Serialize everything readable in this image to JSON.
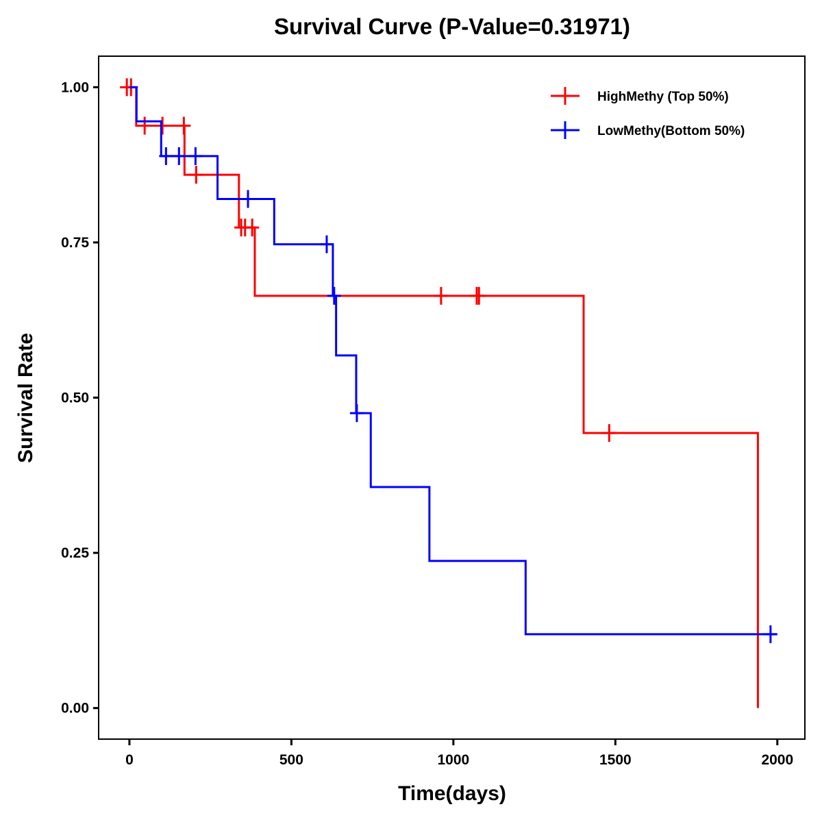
{
  "chart_data": {
    "type": "line",
    "subtype": "kaplan-meier step",
    "title": "Survival Curve (P-Value=0.31971)",
    "xlabel": "Time(days)",
    "ylabel": "Survival Rate",
    "xlim": [
      -95,
      2085
    ],
    "ylim": [
      -0.05,
      1.05
    ],
    "xticks": [
      0,
      500,
      1000,
      1500,
      2000
    ],
    "xtick_labels": [
      "0",
      "500",
      "1000",
      "1500",
      "2000"
    ],
    "yticks": [
      0,
      0.25,
      0.5,
      0.75,
      1.0
    ],
    "ytick_labels": [
      "0.00",
      "0.25",
      "0.50",
      "0.75",
      "1.00"
    ],
    "grid": false,
    "legend_position": "top-right",
    "series": [
      {
        "name": "HighMethy (Top 50%)",
        "color": "#ff0000",
        "steps": [
          [
            0,
            1.0
          ],
          [
            21,
            0.938
          ],
          [
            170,
            0.859
          ],
          [
            338,
            0.774
          ],
          [
            387,
            0.664
          ],
          [
            1402,
            0.443
          ],
          [
            1940,
            0.0
          ]
        ],
        "end_time": 1940,
        "censored": [
          [
            -8,
            1.0
          ],
          [
            5,
            1.0
          ],
          [
            47,
            0.938
          ],
          [
            102,
            0.938
          ],
          [
            168,
            0.938
          ],
          [
            206,
            0.859
          ],
          [
            345,
            0.774
          ],
          [
            357,
            0.774
          ],
          [
            379,
            0.774
          ],
          [
            962,
            0.664
          ],
          [
            1072,
            0.664
          ],
          [
            1079,
            0.664
          ],
          [
            1481,
            0.443
          ]
        ]
      },
      {
        "name": "LowMethy(Bottom 50%)",
        "color": "#0000ff",
        "steps": [
          [
            0,
            1.0
          ],
          [
            22,
            0.945
          ],
          [
            98,
            0.889
          ],
          [
            272,
            0.82
          ],
          [
            447,
            0.747
          ],
          [
            628,
            0.664
          ],
          [
            638,
            0.568
          ],
          [
            700,
            0.475
          ],
          [
            745,
            0.356
          ],
          [
            926,
            0.237
          ],
          [
            1223,
            0.119
          ]
        ],
        "end_time": 1996,
        "censored": [
          [
            113,
            0.889
          ],
          [
            153,
            0.889
          ],
          [
            204,
            0.889
          ],
          [
            366,
            0.82
          ],
          [
            609,
            0.747
          ],
          [
            632,
            0.664
          ],
          [
            702,
            0.475
          ],
          [
            1979,
            0.119
          ]
        ]
      }
    ]
  }
}
